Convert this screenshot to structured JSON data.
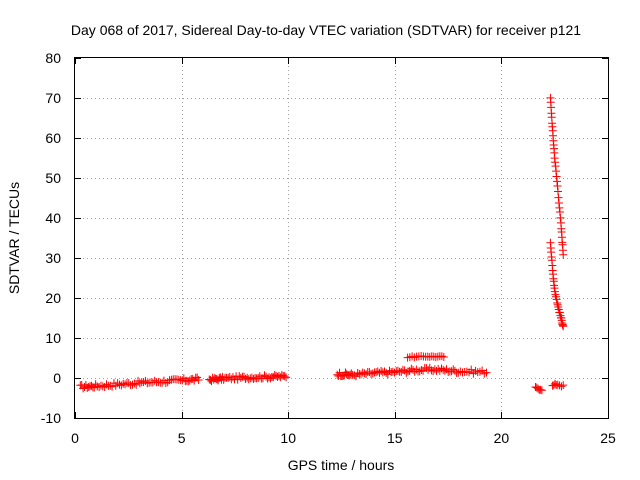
{
  "chart_data": {
    "type": "scatter",
    "title": "Day 068 of 2017, Sidereal Day-to-day VTEC variation (SDTVAR) for receiver p121",
    "xlabel": "GPS time / hours",
    "ylabel": "SDTVAR / TECUs",
    "xlim": [
      0,
      25
    ],
    "ylim": [
      -10,
      80
    ],
    "xticks": [
      0,
      5,
      10,
      15,
      20,
      25
    ],
    "yticks": [
      -10,
      0,
      10,
      20,
      30,
      40,
      50,
      60,
      70,
      80
    ],
    "grid": true,
    "marker": "+",
    "color": "#ff0000",
    "segments": [
      {
        "x": [
          0.25,
          1.0,
          2.0,
          3.0,
          4.0,
          5.0,
          5.8
        ],
        "y": [
          -2.2,
          -2.0,
          -1.6,
          -1.2,
          -0.9,
          -0.6,
          -0.3
        ],
        "n": 70,
        "spread": 1.0
      },
      {
        "x": [
          6.3,
          7.0,
          8.0,
          9.0,
          9.9
        ],
        "y": [
          -0.4,
          -0.1,
          0.1,
          0.3,
          0.4
        ],
        "n": 55,
        "spread": 0.9
      },
      {
        "x": [
          12.3,
          13.0,
          14.0,
          15.0,
          16.0,
          17.0,
          18.0,
          19.3
        ],
        "y": [
          1.0,
          0.8,
          1.2,
          1.5,
          2.0,
          2.1,
          1.7,
          1.5
        ],
        "n": 90,
        "spread": 1.0
      },
      {
        "x": [
          15.6,
          16.5,
          17.3
        ],
        "y": [
          5.2,
          5.4,
          5.3
        ],
        "n": 18,
        "spread": 0.3
      },
      {
        "x": [
          21.6,
          21.9
        ],
        "y": [
          -2.5,
          -2.8
        ],
        "n": 6,
        "spread": 0.6
      },
      {
        "x": [
          22.4,
          22.6,
          22.9
        ],
        "y": [
          -2.0,
          -1.5,
          -2.0
        ],
        "n": 8,
        "spread": 0.6
      },
      {
        "x": [
          22.3,
          22.4,
          22.5,
          22.65,
          22.8,
          22.9
        ],
        "y": [
          70.0,
          62.0,
          55.0,
          47.0,
          38.0,
          31.0
        ],
        "n": 34,
        "spread": 0.6
      },
      {
        "x": [
          22.3,
          22.4,
          22.5,
          22.65,
          22.8,
          22.9
        ],
        "y": [
          34.0,
          27.0,
          22.0,
          18.0,
          15.0,
          13.0
        ],
        "n": 30,
        "spread": 0.6
      }
    ]
  }
}
